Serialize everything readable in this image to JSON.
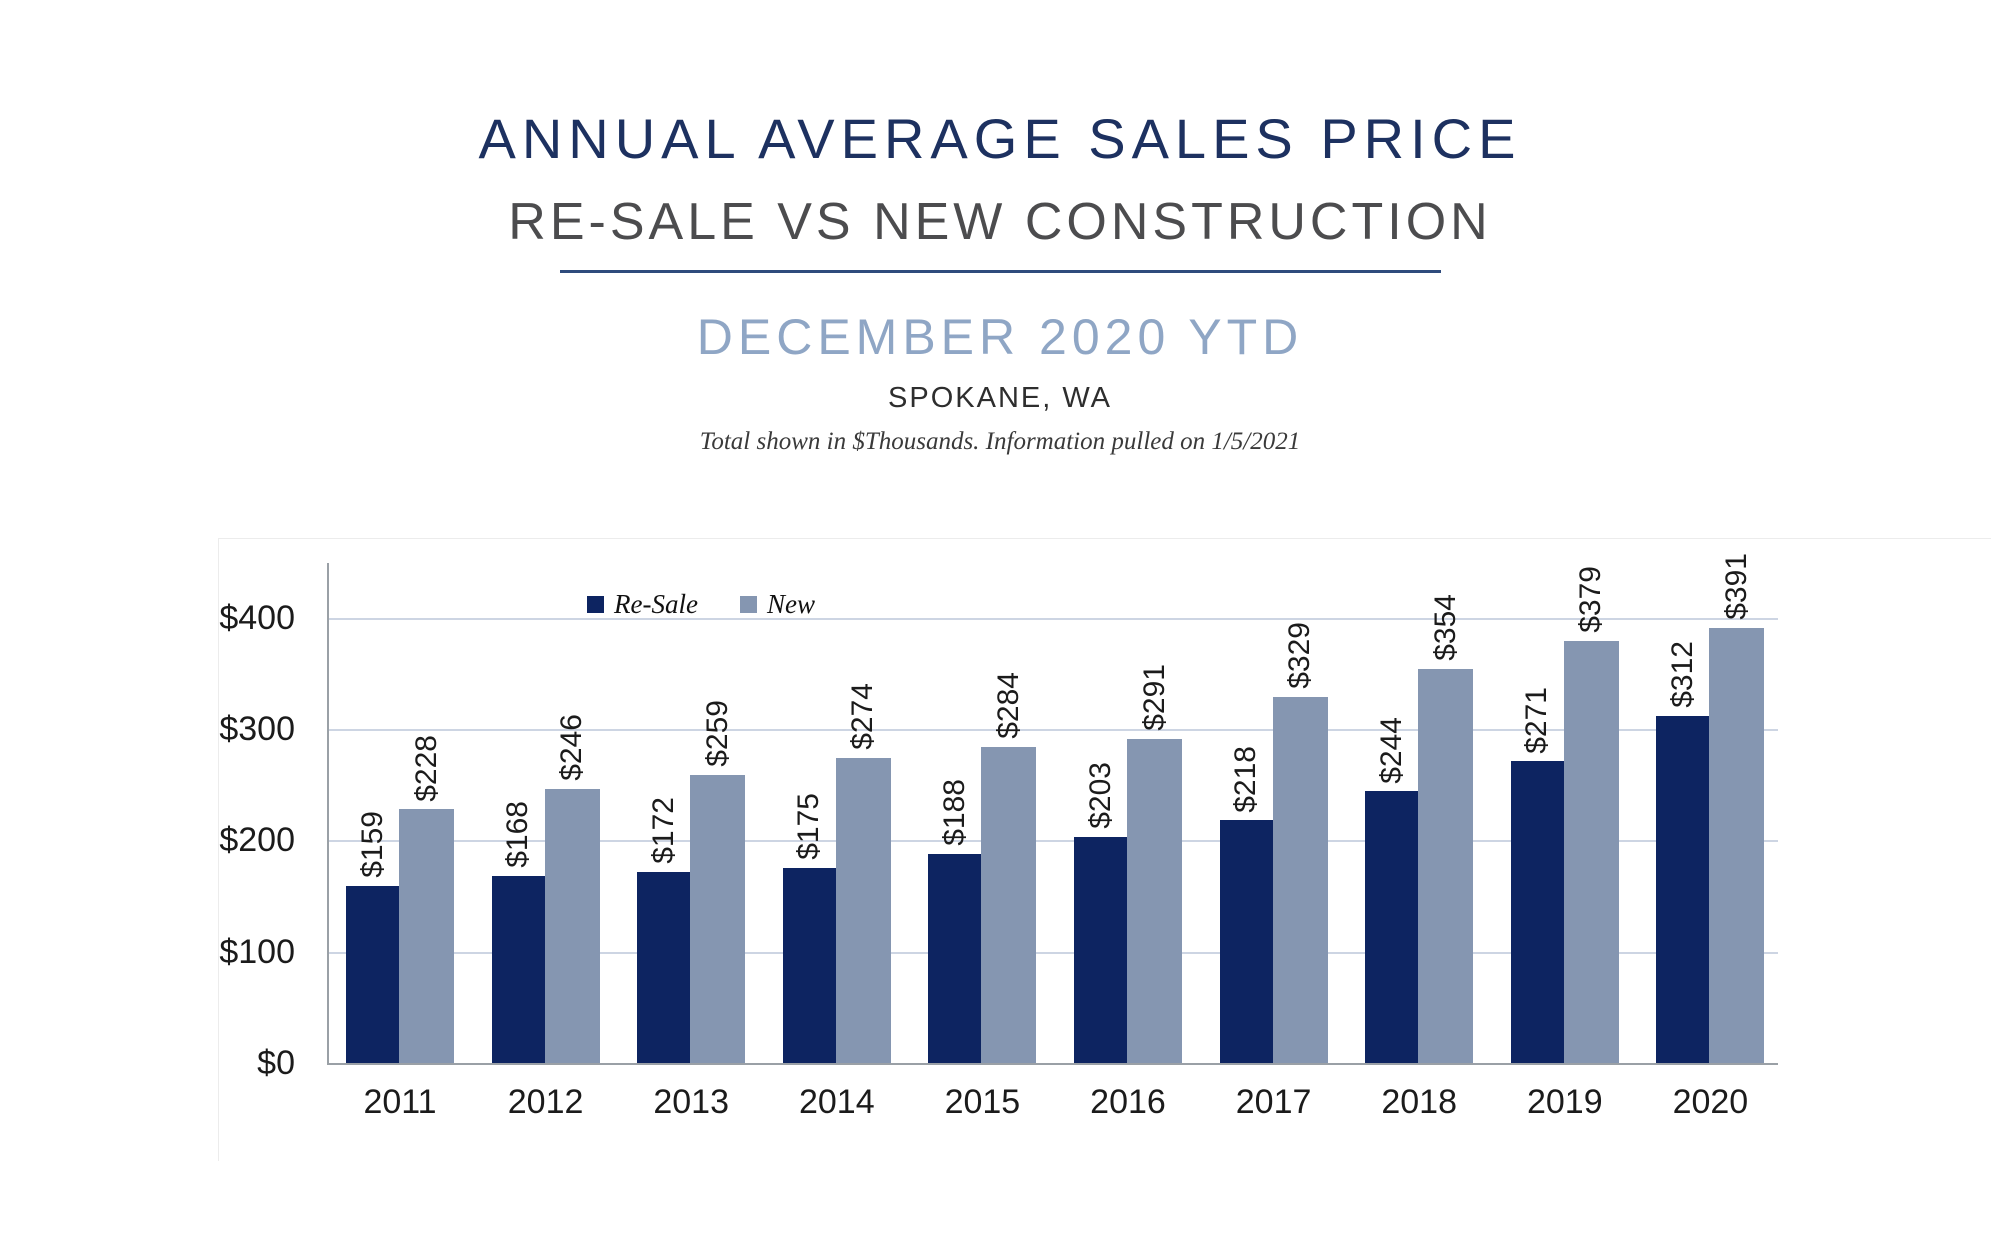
{
  "header": {
    "title": "ANNUAL AVERAGE SALES PRICE",
    "subtitle": "RE-SALE VS NEW CONSTRUCTION",
    "period": "DECEMBER 2020 YTD",
    "location": "SPOKANE, WA",
    "footnote": "Total shown in $Thousands. Information pulled on 1/5/2021"
  },
  "colors": {
    "title": "#1d3160",
    "subtitle": "#4c4c4e",
    "divider": "#2f4b7c",
    "period": "#8fa6c5",
    "resale": "#0d2461",
    "new": "#8596b1",
    "gridline": "#cdd5e3",
    "axis": "#9aa0a6"
  },
  "chart_data": {
    "type": "bar",
    "title": "Annual Average Sales Price — Re-Sale vs New Construction (Spokane, WA, December 2020 YTD, $Thousands)",
    "categories": [
      "2011",
      "2012",
      "2013",
      "2014",
      "2015",
      "2016",
      "2017",
      "2018",
      "2019",
      "2020"
    ],
    "series": [
      {
        "name": "Re-Sale",
        "color": "#0d2461",
        "values": [
          159,
          168,
          172,
          175,
          188,
          203,
          218,
          244,
          271,
          312
        ]
      },
      {
        "name": "New",
        "color": "#8596b1",
        "values": [
          228,
          246,
          259,
          274,
          284,
          291,
          329,
          354,
          379,
          391
        ]
      }
    ],
    "data_label_prefix": "$",
    "y_axis": {
      "tick_labels": [
        "$0",
        "$100",
        "$200",
        "$300",
        "$400"
      ],
      "tick_values": [
        0,
        100,
        200,
        300,
        400
      ],
      "ylim": [
        0,
        451
      ]
    },
    "grid": true,
    "legend_position": "top-inside-left",
    "data_labels_rotated": true
  }
}
